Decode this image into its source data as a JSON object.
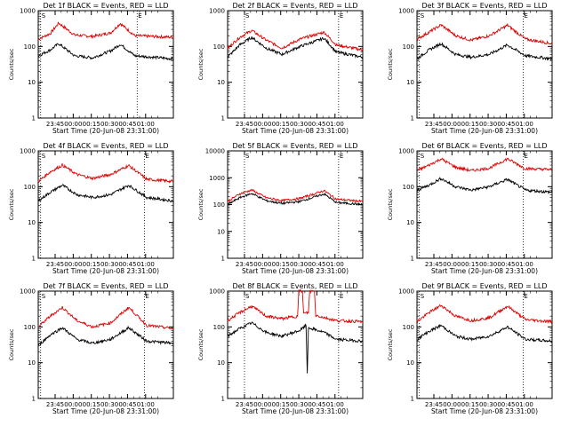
{
  "chart_data": [
    {
      "type": "line",
      "title": "Det 1f BLACK = Events, RED = LLD",
      "ylabel": "Counts/sec",
      "xlabel": "Start Time (20-Jun-08 23:31:00)",
      "yscale": "log",
      "ylim": [
        1,
        1000
      ],
      "yticks": [
        "1",
        "10",
        "100",
        "1000"
      ],
      "xticks": [
        "23:45",
        "00:00",
        "00:15",
        "00:30",
        "00:45",
        "01:00"
      ],
      "xlim_minutes": [
        0,
        112
      ],
      "markers": {
        "S_minute": 2,
        "E_minute": 82,
        "S_label": "S",
        "E_label": "E"
      },
      "series": [
        {
          "color": "#e00000",
          "points": [
            [
              0,
              160
            ],
            [
              10,
              230
            ],
            [
              17,
              450
            ],
            [
              30,
              210
            ],
            [
              45,
              190
            ],
            [
              60,
              240
            ],
            [
              68,
              440
            ],
            [
              80,
              200
            ],
            [
              112,
              180
            ]
          ]
        },
        {
          "color": "#000000",
          "points": [
            [
              0,
              55
            ],
            [
              10,
              80
            ],
            [
              17,
              120
            ],
            [
              30,
              55
            ],
            [
              45,
              48
            ],
            [
              60,
              75
            ],
            [
              68,
              115
            ],
            [
              80,
              55
            ],
            [
              112,
              45
            ]
          ]
        }
      ]
    },
    {
      "type": "line",
      "title": "Det 2f BLACK = Events, RED = LLD",
      "ylabel": "Counts/sec",
      "xlabel": "Start Time (20-Jun-08 23:31:00)",
      "yscale": "log",
      "ylim": [
        1,
        1000
      ],
      "yticks": [
        "1",
        "10",
        "100",
        "1000"
      ],
      "xticks": [
        "23:45",
        "00:00",
        "00:15",
        "00:30",
        "00:45",
        "01:00"
      ],
      "xlim_minutes": [
        0,
        112
      ],
      "markers": {
        "S_minute": 14,
        "E_minute": 92,
        "S_label": "S",
        "E_label": "E"
      },
      "series": [
        {
          "color": "#e00000",
          "points": [
            [
              0,
              90
            ],
            [
              10,
              180
            ],
            [
              20,
              280
            ],
            [
              32,
              150
            ],
            [
              45,
              90
            ],
            [
              60,
              160
            ],
            [
              80,
              250
            ],
            [
              90,
              110
            ],
            [
              112,
              80
            ]
          ]
        },
        {
          "color": "#000000",
          "points": [
            [
              0,
              50
            ],
            [
              10,
              110
            ],
            [
              20,
              180
            ],
            [
              32,
              90
            ],
            [
              45,
              60
            ],
            [
              60,
              100
            ],
            [
              80,
              170
            ],
            [
              90,
              70
            ],
            [
              112,
              50
            ]
          ]
        }
      ]
    },
    {
      "type": "line",
      "title": "Det 3f BLACK = Events, RED = LLD",
      "ylabel": "Counts/sec",
      "xlabel": "Start Time (20-Jun-08 23:31:00)",
      "yscale": "log",
      "ylim": [
        1,
        1000
      ],
      "yticks": [
        "1",
        "10",
        "100",
        "1000"
      ],
      "xticks": [
        "23:45",
        "00:00",
        "00:15",
        "00:30",
        "00:45",
        "01:00"
      ],
      "xlim_minutes": [
        0,
        112
      ],
      "markers": {
        "S_minute": 2,
        "E_minute": 88,
        "S_label": "S",
        "E_label": "E"
      },
      "series": [
        {
          "color": "#e00000",
          "points": [
            [
              0,
              160
            ],
            [
              10,
              250
            ],
            [
              20,
              400
            ],
            [
              32,
              200
            ],
            [
              45,
              150
            ],
            [
              60,
              200
            ],
            [
              75,
              390
            ],
            [
              90,
              160
            ],
            [
              112,
              120
            ]
          ]
        },
        {
          "color": "#000000",
          "points": [
            [
              0,
              45
            ],
            [
              10,
              80
            ],
            [
              20,
              120
            ],
            [
              32,
              60
            ],
            [
              45,
              50
            ],
            [
              60,
              60
            ],
            [
              75,
              110
            ],
            [
              90,
              55
            ],
            [
              112,
              45
            ]
          ]
        }
      ]
    },
    {
      "type": "line",
      "title": "Det 4f BLACK = Events, RED = LLD",
      "ylabel": "Counts/sec",
      "xlabel": "Start Time (20-Jun-08 23:31:00)",
      "yscale": "log",
      "ylim": [
        1,
        1000
      ],
      "yticks": [
        "1",
        "10",
        "100",
        "1000"
      ],
      "xticks": [
        "23:45",
        "00:00",
        "00:15",
        "00:30",
        "00:45",
        "01:00"
      ],
      "xlim_minutes": [
        0,
        112
      ],
      "markers": {
        "S_minute": 2,
        "E_minute": 88,
        "S_label": "S",
        "E_label": "E"
      },
      "series": [
        {
          "color": "#e00000",
          "points": [
            [
              0,
              140
            ],
            [
              10,
              260
            ],
            [
              20,
              400
            ],
            [
              32,
              220
            ],
            [
              45,
              170
            ],
            [
              60,
              220
            ],
            [
              75,
              390
            ],
            [
              90,
              160
            ],
            [
              112,
              140
            ]
          ]
        },
        {
          "color": "#000000",
          "points": [
            [
              0,
              40
            ],
            [
              10,
              70
            ],
            [
              20,
              110
            ],
            [
              32,
              60
            ],
            [
              45,
              50
            ],
            [
              60,
              60
            ],
            [
              75,
              110
            ],
            [
              90,
              50
            ],
            [
              112,
              40
            ]
          ]
        }
      ]
    },
    {
      "type": "line",
      "title": "Det 5f BLACK = Events, RED = LLD",
      "ylabel": "Counts/sec",
      "xlabel": "Start Time (20-Jun-08 23:31:00)",
      "yscale": "log",
      "ylim": [
        1,
        10000
      ],
      "yticks": [
        "1",
        "10",
        "100",
        "1000",
        "10000"
      ],
      "xticks": [
        "23:45",
        "00:00",
        "00:15",
        "00:30",
        "00:45",
        "01:00"
      ],
      "xlim_minutes": [
        0,
        112
      ],
      "markers": {
        "S_minute": 14,
        "E_minute": 92,
        "S_label": "S",
        "E_label": "E"
      },
      "series": [
        {
          "color": "#e00000",
          "points": [
            [
              0,
              130
            ],
            [
              10,
              250
            ],
            [
              20,
              350
            ],
            [
              32,
              180
            ],
            [
              45,
              140
            ],
            [
              60,
              170
            ],
            [
              80,
              330
            ],
            [
              90,
              160
            ],
            [
              112,
              130
            ]
          ]
        },
        {
          "color": "#000000",
          "points": [
            [
              0,
              100
            ],
            [
              10,
              180
            ],
            [
              20,
              260
            ],
            [
              32,
              140
            ],
            [
              45,
              110
            ],
            [
              60,
              130
            ],
            [
              80,
              250
            ],
            [
              90,
              120
            ],
            [
              112,
              100
            ]
          ]
        }
      ]
    },
    {
      "type": "line",
      "title": "Det 6f BLACK = Events, RED = LLD",
      "ylabel": "Counts/sec",
      "xlabel": "Start Time (20-Jun-08 23:31:00)",
      "yscale": "log",
      "ylim": [
        1,
        1000
      ],
      "yticks": [
        "1",
        "10",
        "100",
        "1000"
      ],
      "xticks": [
        "23:45",
        "00:00",
        "00:15",
        "00:30",
        "00:45",
        "01:00"
      ],
      "xlim_minutes": [
        0,
        112
      ],
      "markers": {
        "S_minute": 2,
        "E_minute": 88,
        "S_label": "S",
        "E_label": "E"
      },
      "series": [
        {
          "color": "#e00000",
          "points": [
            [
              0,
              280
            ],
            [
              10,
              400
            ],
            [
              20,
              600
            ],
            [
              32,
              350
            ],
            [
              45,
              280
            ],
            [
              60,
              330
            ],
            [
              75,
              600
            ],
            [
              90,
              320
            ],
            [
              112,
              300
            ]
          ]
        },
        {
          "color": "#000000",
          "points": [
            [
              0,
              80
            ],
            [
              10,
              110
            ],
            [
              20,
              170
            ],
            [
              32,
              100
            ],
            [
              45,
              80
            ],
            [
              60,
              100
            ],
            [
              75,
              160
            ],
            [
              90,
              80
            ],
            [
              112,
              70
            ]
          ]
        }
      ]
    },
    {
      "type": "line",
      "title": "Det 7f BLACK = Events, RED = LLD",
      "ylabel": "Counts/sec",
      "xlabel": "Start Time (20-Jun-08 23:31:00)",
      "yscale": "log",
      "ylim": [
        1,
        1000
      ],
      "yticks": [
        "1",
        "10",
        "100",
        "1000"
      ],
      "xticks": [
        "23:45",
        "00:00",
        "00:15",
        "00:30",
        "00:45",
        "01:00"
      ],
      "xlim_minutes": [
        0,
        112
      ],
      "markers": {
        "S_minute": 2,
        "E_minute": 88,
        "S_label": "S",
        "E_label": "E"
      },
      "series": [
        {
          "color": "#e00000",
          "points": [
            [
              0,
              100
            ],
            [
              10,
              200
            ],
            [
              20,
              350
            ],
            [
              32,
              150
            ],
            [
              45,
              100
            ],
            [
              60,
              130
            ],
            [
              75,
              350
            ],
            [
              90,
              110
            ],
            [
              112,
              90
            ]
          ]
        },
        {
          "color": "#000000",
          "points": [
            [
              0,
              30
            ],
            [
              10,
              60
            ],
            [
              20,
              95
            ],
            [
              32,
              45
            ],
            [
              45,
              35
            ],
            [
              60,
              45
            ],
            [
              75,
              95
            ],
            [
              90,
              40
            ],
            [
              112,
              35
            ]
          ]
        }
      ]
    },
    {
      "type": "line",
      "title": "Det 8f BLACK = Events, RED = LLD",
      "ylabel": "Counts/sec",
      "xlabel": "Start Time (20-Jun-08 23:31:00)",
      "yscale": "log",
      "ylim": [
        1,
        1000
      ],
      "yticks": [
        "1",
        "10",
        "100",
        "1000"
      ],
      "xticks": [
        "23:45",
        "00:00",
        "00:15",
        "00:30",
        "00:45",
        "01:00"
      ],
      "xlim_minutes": [
        0,
        112
      ],
      "markers": {
        "S_minute": 14,
        "E_minute": 92,
        "S_label": "S",
        "E_label": "E"
      },
      "series": [
        {
          "color": "#e00000",
          "points": [
            [
              0,
              150
            ],
            [
              10,
              250
            ],
            [
              20,
              380
            ],
            [
              32,
              200
            ],
            [
              45,
              170
            ],
            [
              58,
              200
            ],
            [
              59,
              1000
            ],
            [
              62,
              1000
            ],
            [
              63,
              240
            ],
            [
              67,
              250
            ],
            [
              68,
              1000
            ],
            [
              72,
              1000
            ],
            [
              73,
              210
            ],
            [
              90,
              150
            ],
            [
              112,
              140
            ]
          ]
        },
        {
          "color": "#000000",
          "points": [
            [
              0,
              55
            ],
            [
              10,
              90
            ],
            [
              20,
              130
            ],
            [
              32,
              70
            ],
            [
              45,
              55
            ],
            [
              60,
              80
            ],
            [
              65,
              110
            ],
            [
              66,
              5
            ],
            [
              67,
              95
            ],
            [
              80,
              70
            ],
            [
              90,
              45
            ],
            [
              112,
              40
            ]
          ]
        }
      ]
    },
    {
      "type": "line",
      "title": "Det 9f BLACK = Events, RED = LLD",
      "ylabel": "Counts/sec",
      "xlabel": "Start Time (20-Jun-08 23:31:00)",
      "yscale": "log",
      "ylim": [
        1,
        1000
      ],
      "yticks": [
        "1",
        "10",
        "100",
        "1000"
      ],
      "xticks": [
        "23:45",
        "00:00",
        "00:15",
        "00:30",
        "00:45",
        "01:00"
      ],
      "xlim_minutes": [
        0,
        112
      ],
      "markers": {
        "S_minute": 2,
        "E_minute": 88,
        "S_label": "S",
        "E_label": "E"
      },
      "series": [
        {
          "color": "#e00000",
          "points": [
            [
              0,
              140
            ],
            [
              10,
              250
            ],
            [
              20,
              400
            ],
            [
              32,
              200
            ],
            [
              45,
              150
            ],
            [
              60,
              180
            ],
            [
              75,
              380
            ],
            [
              90,
              160
            ],
            [
              112,
              140
            ]
          ]
        },
        {
          "color": "#000000",
          "points": [
            [
              0,
              45
            ],
            [
              10,
              75
            ],
            [
              20,
              110
            ],
            [
              32,
              55
            ],
            [
              45,
              45
            ],
            [
              60,
              55
            ],
            [
              75,
              100
            ],
            [
              90,
              45
            ],
            [
              112,
              40
            ]
          ]
        }
      ]
    }
  ]
}
